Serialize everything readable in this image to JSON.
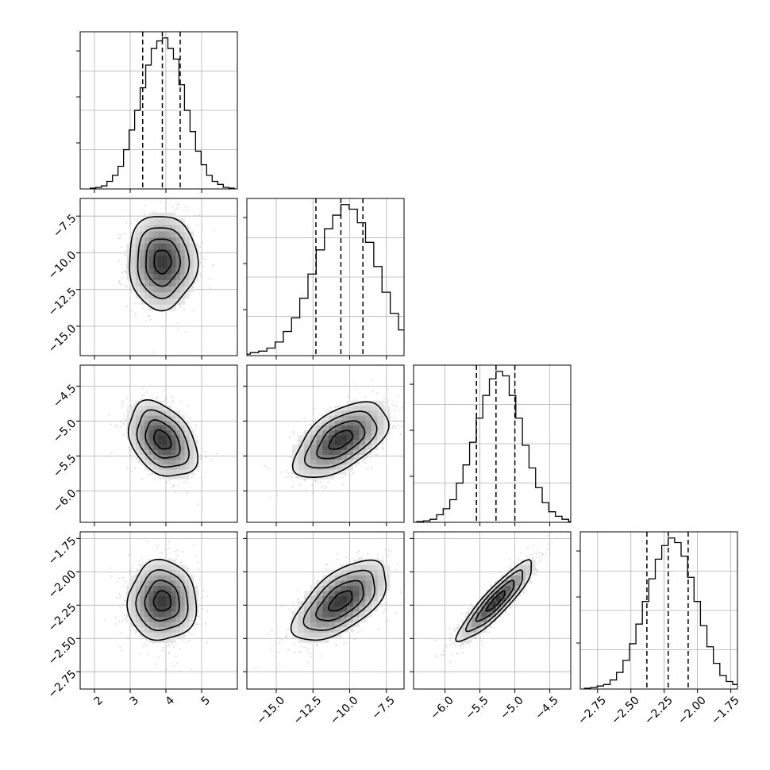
{
  "chart_data": {
    "type": "corner",
    "grid": true,
    "parameters": [
      {
        "range": [
          1.6,
          6.0
        ],
        "ticks": [
          2,
          3,
          4,
          5
        ],
        "tick_labels": [
          "2",
          "3",
          "4",
          "5"
        ],
        "quantiles": [
          3.35,
          3.9,
          4.4
        ],
        "mean": 3.9,
        "sd": 0.48,
        "hist": [
          0.005,
          0.01,
          0.02,
          0.05,
          0.09,
          0.15,
          0.26,
          0.39,
          0.52,
          0.67,
          0.82,
          0.93,
          0.98,
          1.0,
          0.93,
          0.86,
          0.69,
          0.52,
          0.38,
          0.25,
          0.16,
          0.09,
          0.05,
          0.03,
          0.01,
          0.005
        ],
        "hist_ymax": 1.02
      },
      {
        "range": [
          -17.0,
          -6.3
        ],
        "ticks": [
          -15.0,
          -12.5,
          -10.0,
          -7.5
        ],
        "tick_labels": [
          "−15.0",
          "−12.5",
          "−10.0",
          "−7.5"
        ],
        "quantiles": [
          -12.3,
          -10.6,
          -9.1
        ],
        "mean": -10.6,
        "sd": 1.6,
        "hist": [
          0.01,
          0.02,
          0.03,
          0.05,
          0.09,
          0.16,
          0.25,
          0.38,
          0.54,
          0.7,
          0.84,
          0.93,
          1.0,
          0.97,
          0.88,
          0.75,
          0.59,
          0.42,
          0.28,
          0.17,
          0.09,
          0.05,
          0.03,
          0.01
        ],
        "hist_ymax": 1.02
      },
      {
        "range": [
          -6.45,
          -4.2
        ],
        "ticks": [
          -6.0,
          -5.5,
          -5.0,
          -4.5
        ],
        "tick_labels": [
          "−6.0",
          "−5.5",
          "−5.0",
          "−4.5"
        ],
        "quantiles": [
          -5.55,
          -5.27,
          -5.0
        ],
        "mean": -5.27,
        "sd": 0.27,
        "hist": [
          0.005,
          0.01,
          0.02,
          0.05,
          0.09,
          0.15,
          0.26,
          0.38,
          0.53,
          0.69,
          0.84,
          0.95,
          1.0,
          0.97,
          0.84,
          0.69,
          0.51,
          0.36,
          0.23,
          0.13,
          0.07,
          0.04,
          0.02,
          0.005
        ],
        "hist_ymax": 1.02
      },
      {
        "range": [
          -2.88,
          -1.7
        ],
        "ticks": [
          -2.75,
          -2.5,
          -2.25,
          -2.0,
          -1.75
        ],
        "tick_labels": [
          "−2.75",
          "−2.50",
          "−2.25",
          "−2.00",
          "−1.75"
        ],
        "quantiles": [
          -2.38,
          -2.22,
          -2.07
        ],
        "mean": -2.22,
        "sd": 0.15,
        "hist": [
          0.005,
          0.01,
          0.02,
          0.03,
          0.06,
          0.11,
          0.19,
          0.3,
          0.43,
          0.58,
          0.73,
          0.86,
          0.95,
          1.0,
          0.97,
          0.88,
          0.74,
          0.58,
          0.42,
          0.28,
          0.17,
          0.09,
          0.05,
          0.03,
          0.01,
          0.005
        ],
        "hist_ymax": 1.02
      }
    ],
    "correlations": [
      [
        1,
        0.0,
        -0.35,
        0.0
      ],
      [
        0.0,
        1,
        0.55,
        0.6
      ],
      [
        -0.35,
        0.55,
        1,
        0.9
      ],
      [
        0.0,
        0.6,
        0.9,
        1
      ]
    ],
    "contour_levels_sigma": [
      0.5,
      1.0,
      1.5,
      2.0
    ],
    "colors": {
      "scatter": "#888888",
      "density": "#000000",
      "lines": "#000000"
    }
  }
}
